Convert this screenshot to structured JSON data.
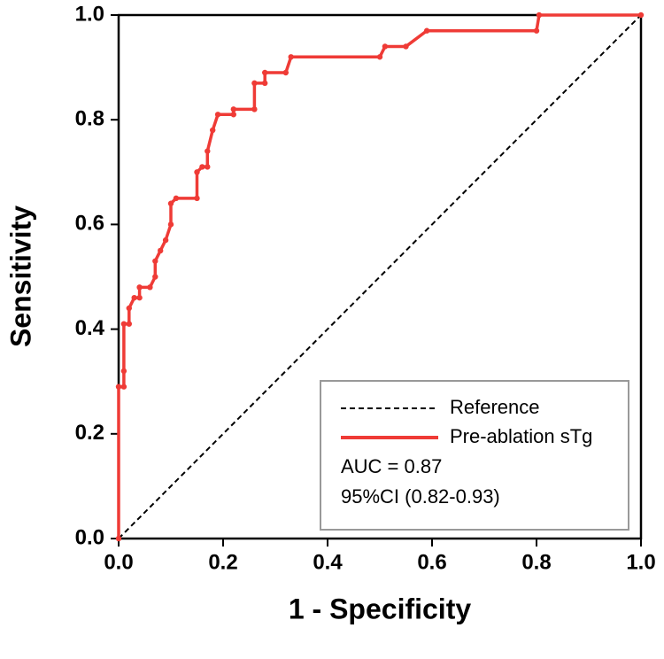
{
  "chart_data": {
    "type": "line",
    "x_label": "1 - Specificity",
    "y_label": "Sensitivity",
    "xlim": [
      0,
      1
    ],
    "ylim": [
      0,
      1
    ],
    "xticks": [
      {
        "value": 0,
        "label": "0.0"
      },
      0.2,
      0.4,
      0.6,
      0.8,
      {
        "value": 1,
        "label": "1.0"
      }
    ],
    "yticks": [
      {
        "value": 0,
        "label": "0.0"
      },
      0.2,
      0.4,
      0.6,
      0.8,
      {
        "value": 1,
        "label": "1.0"
      }
    ],
    "legend": "lower right",
    "annotations": [
      "AUC = 0.87",
      "95%CI (0.82-0.93)"
    ],
    "series": [
      {
        "name": "Reference",
        "color": "#000000",
        "dashed": true,
        "markers": false,
        "x": [
          0,
          1
        ],
        "values": [
          0,
          1
        ]
      },
      {
        "name": "Pre-ablation sTg",
        "color": "#ef3b36",
        "dashed": false,
        "markers": true,
        "x": [
          0,
          0,
          0.01,
          0.01,
          0.01,
          0.02,
          0.02,
          0.03,
          0.04,
          0.04,
          0.06,
          0.07,
          0.07,
          0.08,
          0.09,
          0.1,
          0.1,
          0.11,
          0.15,
          0.15,
          0.16,
          0.17,
          0.17,
          0.18,
          0.19,
          0.22,
          0.22,
          0.26,
          0.26,
          0.28,
          0.28,
          0.32,
          0.33,
          0.5,
          0.51,
          0.55,
          0.59,
          0.8,
          0.805,
          1
        ],
        "values": [
          0,
          0.29,
          0.29,
          0.32,
          0.41,
          0.41,
          0.44,
          0.46,
          0.46,
          0.48,
          0.48,
          0.5,
          0.53,
          0.55,
          0.57,
          0.6,
          0.64,
          0.65,
          0.65,
          0.7,
          0.71,
          0.71,
          0.74,
          0.78,
          0.81,
          0.81,
          0.82,
          0.82,
          0.87,
          0.87,
          0.89,
          0.89,
          0.92,
          0.92,
          0.94,
          0.94,
          0.97,
          0.97,
          1,
          1
        ]
      }
    ]
  }
}
